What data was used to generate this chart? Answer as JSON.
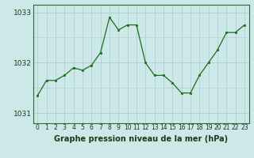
{
  "hours": [
    0,
    1,
    2,
    3,
    4,
    5,
    6,
    7,
    8,
    9,
    10,
    11,
    12,
    13,
    14,
    15,
    16,
    17,
    18,
    19,
    20,
    21,
    22,
    23
  ],
  "pressure": [
    1031.35,
    1031.65,
    1031.65,
    1031.75,
    1031.9,
    1031.85,
    1031.95,
    1032.2,
    1032.9,
    1032.65,
    1032.75,
    1032.75,
    1032.0,
    1031.75,
    1031.75,
    1031.6,
    1031.4,
    1031.4,
    1031.75,
    1032.0,
    1032.25,
    1032.6,
    1032.6,
    1032.75
  ],
  "ylim": [
    1030.8,
    1033.15
  ],
  "yticks": [
    1031,
    1032,
    1033
  ],
  "xticks": [
    0,
    1,
    2,
    3,
    4,
    5,
    6,
    7,
    8,
    9,
    10,
    11,
    12,
    13,
    14,
    15,
    16,
    17,
    18,
    19,
    20,
    21,
    22,
    23
  ],
  "line_color": "#1a6e1a",
  "marker_color": "#1a6e1a",
  "bg_color": "#cce8e8",
  "grid_color": "#aacccc",
  "xlabel": "Graphe pression niveau de la mer (hPa)",
  "xlabel_fontsize": 7,
  "tick_fontsize": 5.5,
  "ytick_fontsize": 6.5,
  "border_color": "#336633",
  "text_color": "#1a3a1a"
}
